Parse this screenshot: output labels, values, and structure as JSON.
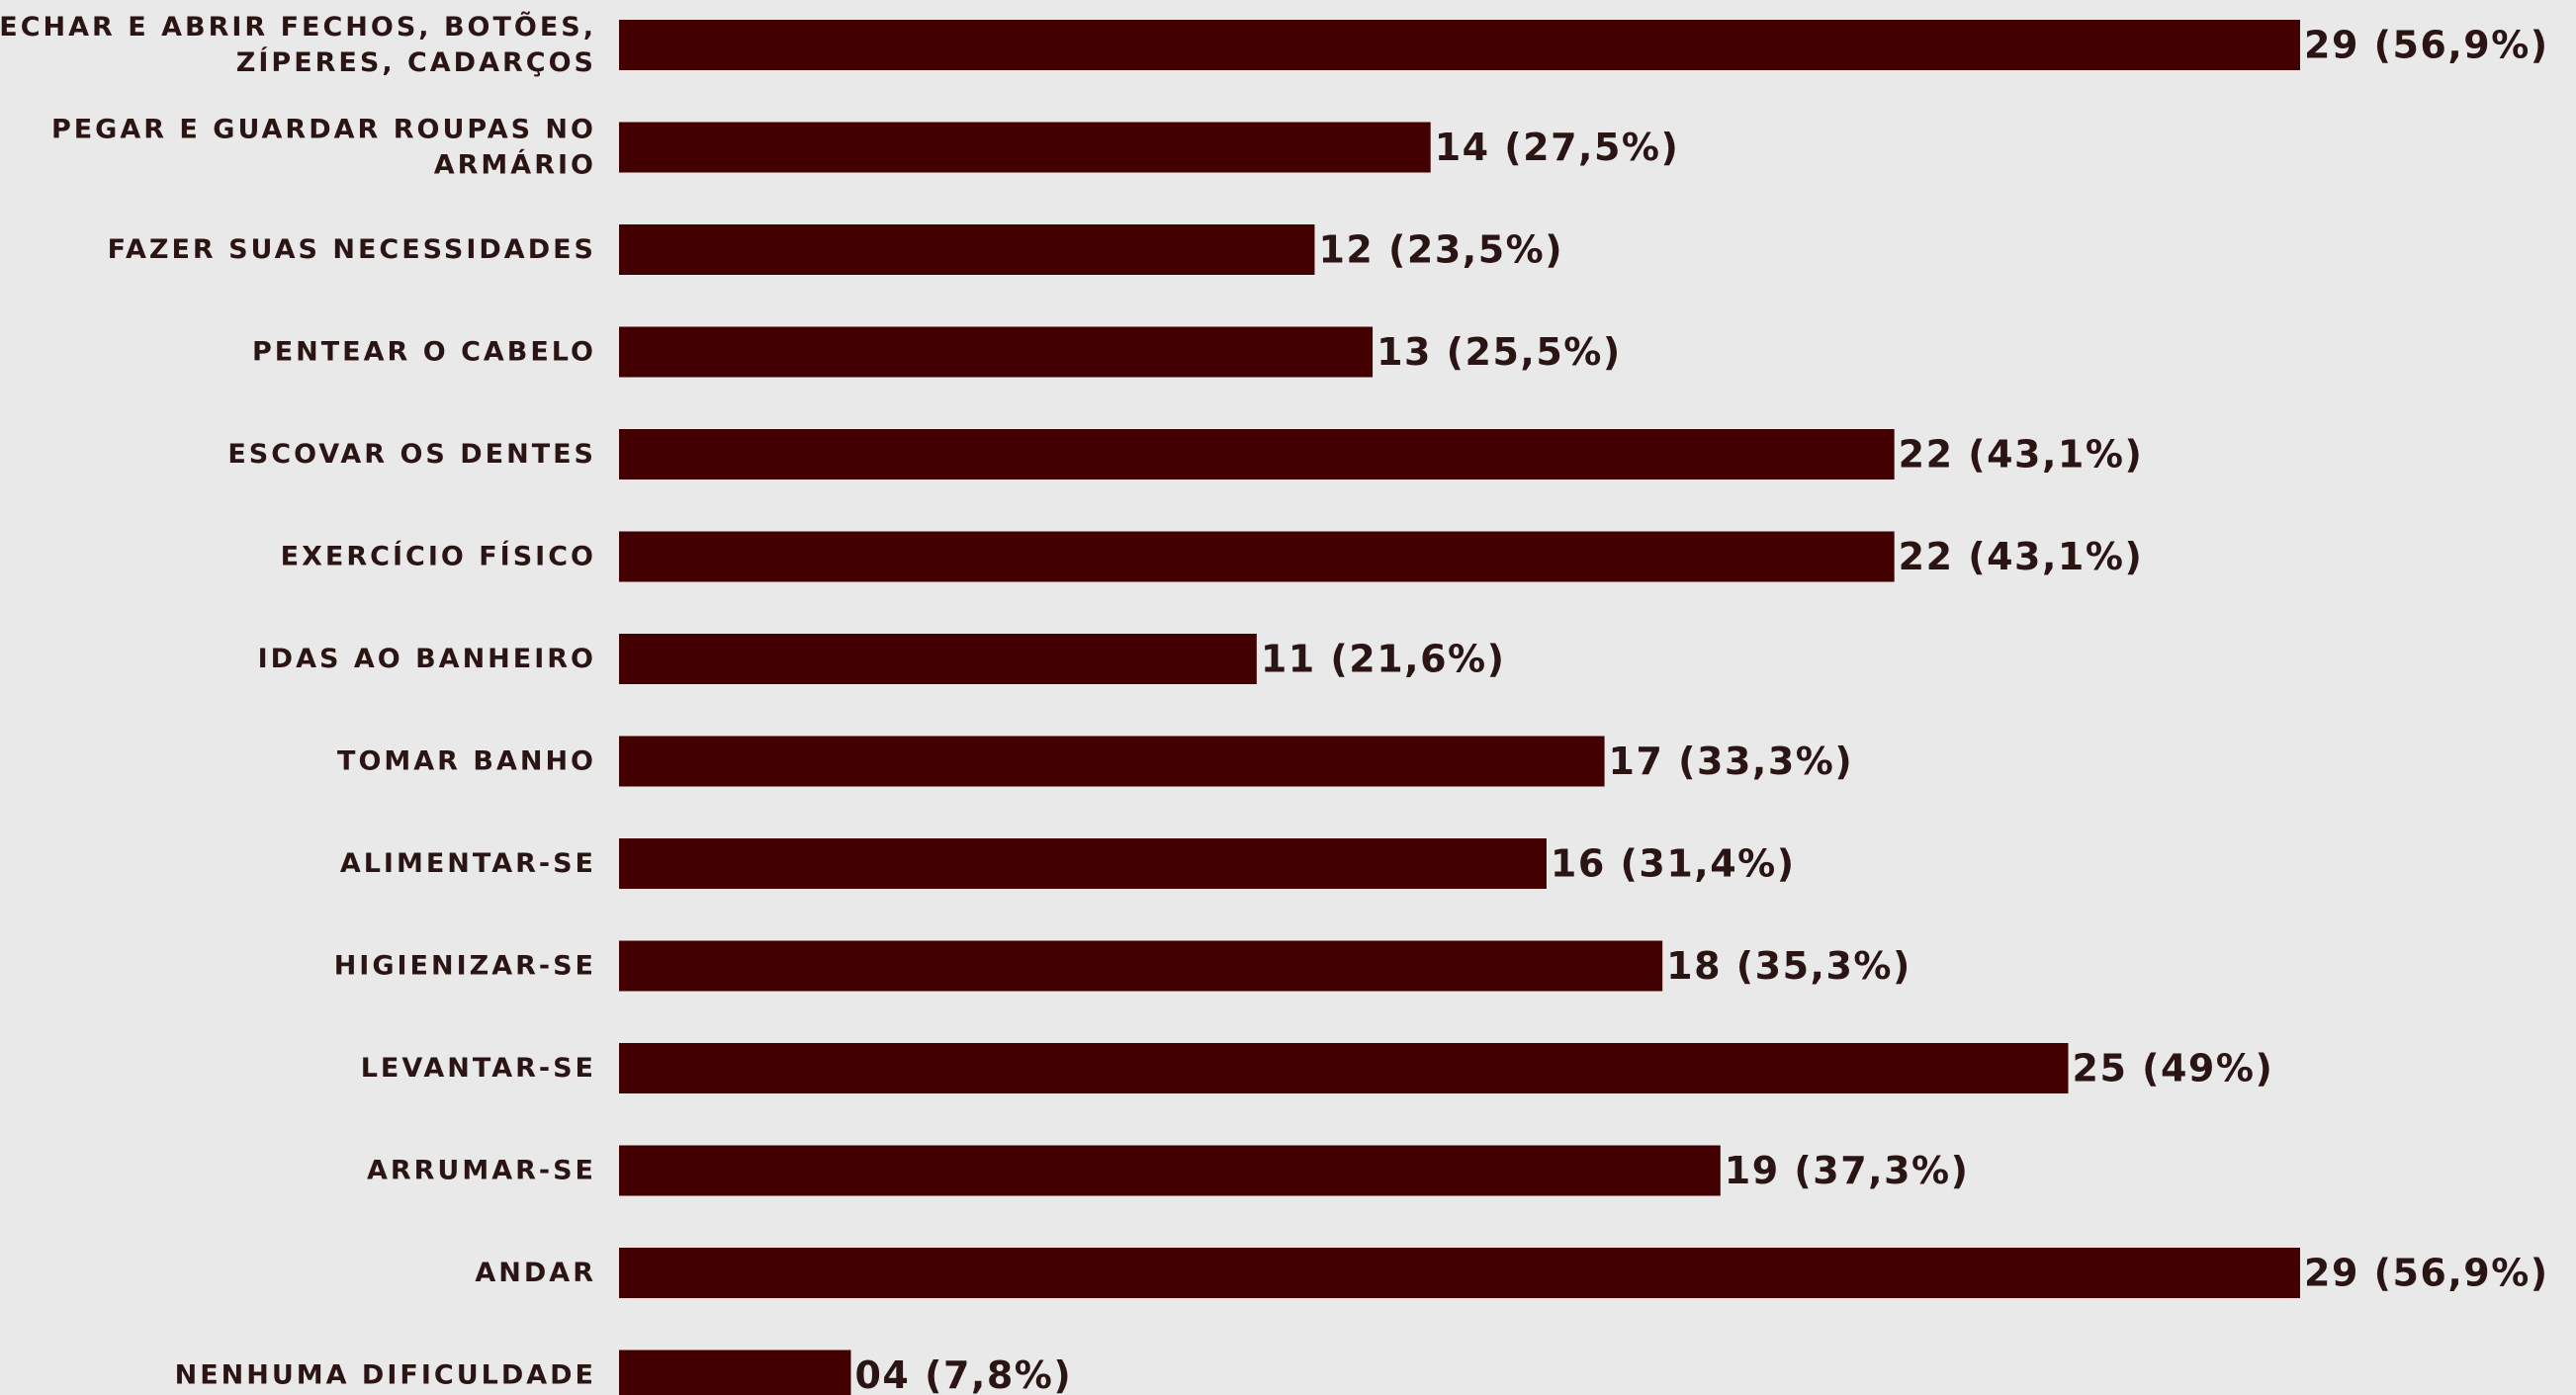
{
  "chart_data": {
    "type": "bar",
    "orientation": "horizontal",
    "title": "",
    "xlabel": "",
    "ylabel": "",
    "grid": false,
    "legend": "none",
    "bar_color": "#420000",
    "background_color": "#e9e9e9",
    "text_color": "#2b1414",
    "xlim": [
      0,
      29
    ],
    "categories": [
      "FECHAR E ABRIR FECHOS, BOTÕES, ZÍPERES, CADARÇOS",
      "PEGAR E GUARDAR ROUPAS NO ARMÁRIO",
      "FAZER SUAS NECESSIDADES",
      "PENTEAR O CABELO",
      "ESCOVAR OS DENTES",
      "EXERCÍCIO FÍSICO",
      "IDAS AO BANHEIRO",
      "TOMAR BANHO",
      "ALIMENTAR-SE",
      "HIGIENIZAR-SE",
      "LEVANTAR-SE",
      "ARRUMAR-SE",
      "ANDAR",
      "NENHUMA DIFICULDADE"
    ],
    "category_lines": [
      [
        "FECHAR E ABRIR FECHOS, BOTÕES,",
        "ZÍPERES, CADARÇOS"
      ],
      [
        "PEGAR E GUARDAR ROUPAS NO",
        "ARMÁRIO"
      ],
      [
        "FAZER SUAS NECESSIDADES"
      ],
      [
        "PENTEAR O CABELO"
      ],
      [
        "ESCOVAR OS DENTES"
      ],
      [
        "EXERCÍCIO FÍSICO"
      ],
      [
        "IDAS AO BANHEIRO"
      ],
      [
        "TOMAR BANHO"
      ],
      [
        "ALIMENTAR-SE"
      ],
      [
        "HIGIENIZAR-SE"
      ],
      [
        "LEVANTAR-SE"
      ],
      [
        "ARRUMAR-SE"
      ],
      [
        "ANDAR"
      ],
      [
        "NENHUMA DIFICULDADE"
      ]
    ],
    "values": [
      29,
      14,
      12,
      13,
      22,
      22,
      11,
      17,
      16,
      18,
      25,
      19,
      29,
      4
    ],
    "percents": [
      56.9,
      27.5,
      23.5,
      25.5,
      43.1,
      43.1,
      21.6,
      33.3,
      31.4,
      35.3,
      49,
      37.3,
      56.9,
      7.8
    ],
    "data_labels": [
      "29 (56,9%)",
      "14 (27,5%)",
      "12 (23,5%)",
      "13 (25,5%)",
      "22 (43,1%)",
      "22 (43,1%)",
      "11 (21,6%)",
      "17 (33,3%)",
      "16 (31,4%)",
      "18 (35,3%)",
      "25 (49%)",
      "19 (37,3%)",
      "29 (56,9%)",
      "04 (7,8%)"
    ]
  }
}
